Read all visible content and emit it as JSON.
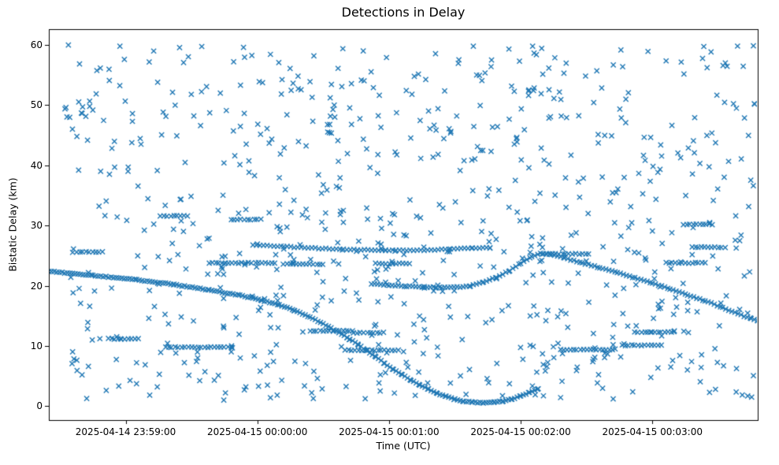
{
  "chart_data": {
    "type": "scatter",
    "title": "Detections in Delay",
    "xlabel": "Time (UTC)",
    "ylabel": "Bistatic Delay (km)",
    "marker": "x",
    "marker_color": "#1f77b4",
    "background": "#ffffff",
    "grid": false,
    "legend": "none",
    "x_axis": {
      "unit": "seconds relative to 2025-04-15 00:00:00 UTC",
      "range": [
        -95,
        228
      ],
      "ticks": [
        {
          "t": -60,
          "label": "2025-04-14 23:59:00"
        },
        {
          "t": 0,
          "label": "2025-04-15 00:00:00"
        },
        {
          "t": 60,
          "label": "2025-04-15 00:01:00"
        },
        {
          "t": 120,
          "label": "2025-04-15 00:02:00"
        },
        {
          "t": 180,
          "label": "2025-04-15 00:03:00"
        }
      ]
    },
    "y_axis": {
      "range": [
        -2.3,
        62.6
      ],
      "ticks": [
        0,
        10,
        20,
        30,
        40,
        50,
        60
      ]
    },
    "tracks": [
      {
        "name": "target-track-chirp-to-zero",
        "step_s": 1.2,
        "waypoints": [
          [
            -95,
            22.4
          ],
          [
            -75,
            21.7
          ],
          [
            -55,
            21.0
          ],
          [
            -38,
            20.2
          ],
          [
            -22,
            19.3
          ],
          [
            -8,
            18.4
          ],
          [
            2,
            17.6
          ],
          [
            10,
            16.8
          ],
          [
            17,
            15.9
          ],
          [
            24,
            14.8
          ],
          [
            30,
            13.7
          ],
          [
            36,
            12.5
          ],
          [
            41,
            11.4
          ],
          [
            46,
            10.2
          ],
          [
            50,
            9.2
          ],
          [
            54,
            8.2
          ],
          [
            58,
            7.1
          ],
          [
            62,
            6.1
          ],
          [
            66,
            5.2
          ],
          [
            70,
            4.3
          ],
          [
            74,
            3.5
          ],
          [
            78,
            2.8
          ],
          [
            82,
            2.1
          ],
          [
            86,
            1.6
          ],
          [
            90,
            1.15
          ],
          [
            94,
            0.85
          ],
          [
            98,
            0.65
          ],
          [
            103,
            0.55
          ],
          [
            108,
            0.65
          ],
          [
            112,
            0.85
          ],
          [
            116,
            1.2
          ],
          [
            120,
            1.7
          ],
          [
            124,
            2.3
          ],
          [
            128,
            2.9
          ]
        ]
      },
      {
        "name": "target-track-26km-band",
        "step_s": 1.6,
        "waypoints": [
          [
            -2,
            26.8
          ],
          [
            12,
            26.5
          ],
          [
            28,
            26.2
          ],
          [
            44,
            26.0
          ],
          [
            60,
            25.9
          ],
          [
            76,
            25.9
          ],
          [
            88,
            26.1
          ],
          [
            98,
            26.3
          ],
          [
            106,
            26.3
          ]
        ]
      },
      {
        "name": "target-track-20km-dip",
        "step_s": 1.4,
        "waypoints": [
          [
            52,
            20.3
          ],
          [
            60,
            20.1
          ],
          [
            68,
            19.9
          ],
          [
            76,
            19.8
          ],
          [
            84,
            19.7
          ],
          [
            91,
            19.8
          ],
          [
            97,
            19.9
          ]
        ]
      },
      {
        "name": "target-track-rise-then-descend-to-14km",
        "step_s": 1.4,
        "waypoints": [
          [
            97,
            20.0
          ],
          [
            103,
            20.6
          ],
          [
            109,
            21.4
          ],
          [
            115,
            22.5
          ],
          [
            120,
            23.7
          ],
          [
            125,
            24.8
          ],
          [
            129,
            25.4
          ],
          [
            134,
            25.2
          ],
          [
            140,
            24.6
          ],
          [
            148,
            23.8
          ],
          [
            156,
            23.0
          ],
          [
            164,
            22.2
          ],
          [
            172,
            21.3
          ],
          [
            180,
            20.4
          ],
          [
            188,
            19.5
          ],
          [
            196,
            18.5
          ],
          [
            204,
            17.5
          ],
          [
            212,
            16.4
          ],
          [
            219,
            15.3
          ],
          [
            225,
            14.6
          ],
          [
            228,
            14.2
          ]
        ]
      }
    ],
    "segments": [
      {
        "y": 25.6,
        "t": [
          -84,
          -70
        ]
      },
      {
        "y": 23.8,
        "t": [
          -22,
          8
        ]
      },
      {
        "y": 23.6,
        "t": [
          12,
          30
        ]
      },
      {
        "y": 31.6,
        "t": [
          -44,
          -32
        ]
      },
      {
        "y": 31.0,
        "t": [
          -12,
          2
        ]
      },
      {
        "y": 9.8,
        "t": [
          -42,
          -12
        ]
      },
      {
        "y": 11.2,
        "t": [
          -68,
          -54
        ]
      },
      {
        "y": 12.5,
        "t": [
          24,
          44
        ]
      },
      {
        "y": 9.3,
        "t": [
          40,
          64
        ]
      },
      {
        "y": 12.2,
        "t": [
          44,
          58
        ]
      },
      {
        "y": 23.7,
        "t": [
          54,
          70
        ]
      },
      {
        "y": 25.3,
        "t": [
          130,
          152
        ]
      },
      {
        "y": 9.4,
        "t": [
          138,
          162
        ]
      },
      {
        "y": 10.1,
        "t": [
          166,
          184
        ]
      },
      {
        "y": 12.3,
        "t": [
          172,
          190
        ]
      },
      {
        "y": 23.8,
        "t": [
          186,
          204
        ]
      },
      {
        "y": 30.2,
        "t": [
          194,
          208
        ]
      },
      {
        "y": 26.4,
        "t": [
          198,
          214
        ]
      }
    ],
    "clutter": {
      "seed": 99,
      "count": 780,
      "t_range": [
        -88,
        227
      ],
      "y_range": [
        0.8,
        60.2
      ]
    }
  }
}
